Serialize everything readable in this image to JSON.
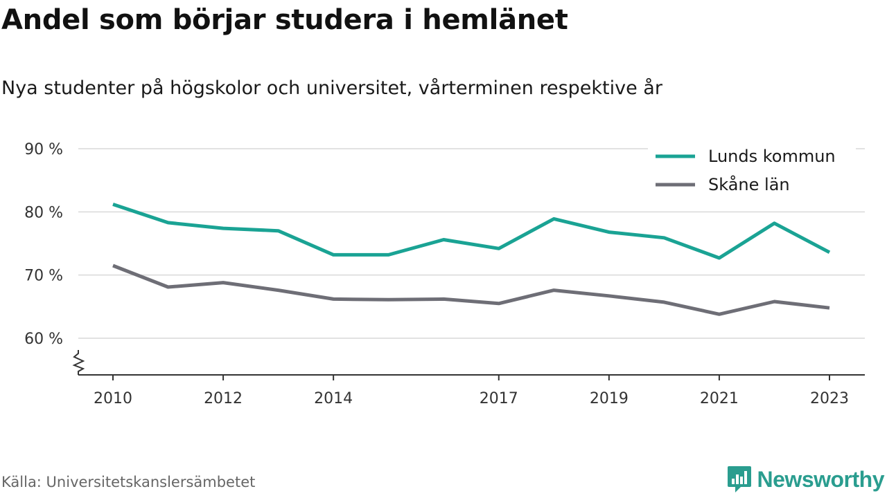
{
  "header": {
    "title": "Andel som börjar studera i hemlänet",
    "subtitle": "Nya studenter på högskolor och universitet, vårterminen respektive år"
  },
  "footer": {
    "source": "Källa: Universitetskanslersämbetet",
    "brand": "Newsworthy",
    "brand_color": "#2a9d8f"
  },
  "chart_data": {
    "type": "line",
    "title": "Andel som börjar studera i hemlänet",
    "subtitle": "Nya studenter på högskolor och universitet, vårterminen respektive år",
    "x": [
      2010,
      2011,
      2012,
      2013,
      2014,
      2015,
      2016,
      2017,
      2018,
      2019,
      2020,
      2021,
      2022,
      2023
    ],
    "x_tick_labels": [
      "2010",
      "2012",
      "2014",
      "2017",
      "2019",
      "2021",
      "2023"
    ],
    "y_ticks": [
      60,
      70,
      80,
      90
    ],
    "y_tick_labels": [
      "60 %",
      "70 %",
      "80 %",
      "90 %"
    ],
    "ylim": [
      54,
      90
    ],
    "grid": true,
    "legend_position": "top-right",
    "series": [
      {
        "name": "Lunds kommun",
        "color": "#1aa394",
        "values": [
          81.2,
          78.3,
          77.4,
          77.0,
          73.2,
          73.2,
          75.6,
          74.2,
          78.9,
          76.8,
          75.9,
          72.7,
          78.2,
          73.6
        ]
      },
      {
        "name": "Skåne län",
        "color": "#6e6e76",
        "values": [
          71.5,
          68.1,
          68.8,
          67.6,
          66.2,
          66.1,
          66.2,
          65.5,
          67.6,
          66.7,
          65.7,
          63.8,
          65.8,
          64.8
        ]
      }
    ]
  }
}
